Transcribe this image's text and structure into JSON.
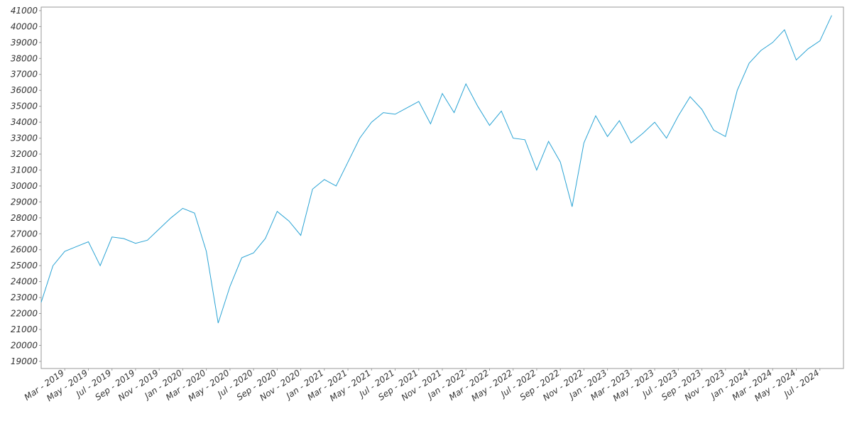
{
  "chart_data": {
    "type": "line",
    "x": [
      "2019-01",
      "2019-02",
      "2019-03",
      "2019-04",
      "2019-05",
      "2019-06",
      "2019-07",
      "2019-08",
      "2019-09",
      "2019-10",
      "2019-11",
      "2019-12",
      "2020-01",
      "2020-02",
      "2020-03",
      "2020-04",
      "2020-05",
      "2020-06",
      "2020-07",
      "2020-08",
      "2020-09",
      "2020-10",
      "2020-11",
      "2020-12",
      "2021-01",
      "2021-02",
      "2021-03",
      "2021-04",
      "2021-05",
      "2021-06",
      "2021-07",
      "2021-08",
      "2021-09",
      "2021-10",
      "2021-11",
      "2021-12",
      "2022-01",
      "2022-02",
      "2022-03",
      "2022-04",
      "2022-05",
      "2022-06",
      "2022-07",
      "2022-08",
      "2022-09",
      "2022-10",
      "2022-11",
      "2022-12",
      "2023-01",
      "2023-02",
      "2023-03",
      "2023-04",
      "2023-05",
      "2023-06",
      "2023-07",
      "2023-08",
      "2023-09",
      "2023-10",
      "2023-11",
      "2023-12",
      "2024-01",
      "2024-02",
      "2024-03",
      "2024-04",
      "2024-05",
      "2024-06",
      "2024-07",
      "2024-08"
    ],
    "series": [
      {
        "color": "#2aa3d4",
        "values": [
          22700,
          25000,
          25900,
          26200,
          26500,
          25000,
          26800,
          26700,
          26400,
          26600,
          27300,
          28000,
          28600,
          28300,
          25900,
          21400,
          23700,
          25500,
          25800,
          26700,
          28400,
          27800,
          26900,
          29800,
          30400,
          30000,
          31500,
          33000,
          34000,
          34600,
          34500,
          34900,
          35300,
          33900,
          35800,
          34600,
          36400,
          35000,
          33800,
          34700,
          33000,
          32900,
          31000,
          32800,
          31500,
          28700,
          32700,
          34400,
          33100,
          34100,
          32700,
          33300,
          34000,
          33000,
          34400,
          35600,
          34800,
          33500,
          33100,
          36000,
          37700,
          38500,
          39000,
          39800,
          37900,
          38600,
          39100,
          40700
        ]
      }
    ],
    "xlim": [
      "2019-01",
      "2024-09"
    ],
    "xticks": [
      {
        "value": "2019-03",
        "label": "Mar - 2019"
      },
      {
        "value": "2019-05",
        "label": "May - 2019"
      },
      {
        "value": "2019-07",
        "label": "Jul - 2019"
      },
      {
        "value": "2019-09",
        "label": "Sep - 2019"
      },
      {
        "value": "2019-11",
        "label": "Nov - 2019"
      },
      {
        "value": "2020-01",
        "label": "Jan - 2020"
      },
      {
        "value": "2020-03",
        "label": "Mar - 2020"
      },
      {
        "value": "2020-05",
        "label": "May - 2020"
      },
      {
        "value": "2020-07",
        "label": "Jul - 2020"
      },
      {
        "value": "2020-09",
        "label": "Sep - 2020"
      },
      {
        "value": "2020-11",
        "label": "Nov - 2020"
      },
      {
        "value": "2021-01",
        "label": "Jan - 2021"
      },
      {
        "value": "2021-03",
        "label": "Mar - 2021"
      },
      {
        "value": "2021-05",
        "label": "May - 2021"
      },
      {
        "value": "2021-07",
        "label": "Jul - 2021"
      },
      {
        "value": "2021-09",
        "label": "Sep - 2021"
      },
      {
        "value": "2021-11",
        "label": "Nov - 2021"
      },
      {
        "value": "2022-01",
        "label": "Jan - 2022"
      },
      {
        "value": "2022-03",
        "label": "Mar - 2022"
      },
      {
        "value": "2022-05",
        "label": "May - 2022"
      },
      {
        "value": "2022-07",
        "label": "Jul - 2022"
      },
      {
        "value": "2022-09",
        "label": "Sep - 2022"
      },
      {
        "value": "2022-11",
        "label": "Nov - 2022"
      },
      {
        "value": "2023-01",
        "label": "Jan - 2023"
      },
      {
        "value": "2023-03",
        "label": "Mar - 2023"
      },
      {
        "value": "2023-05",
        "label": "May - 2023"
      },
      {
        "value": "2023-07",
        "label": "Jul - 2023"
      },
      {
        "value": "2023-09",
        "label": "Sep - 2023"
      },
      {
        "value": "2023-11",
        "label": "Nov - 2023"
      },
      {
        "value": "2024-01",
        "label": "Jan - 2024"
      },
      {
        "value": "2024-03",
        "label": "Mar - 2024"
      },
      {
        "value": "2024-05",
        "label": "May - 2024"
      },
      {
        "value": "2024-07",
        "label": "Jul - 2024"
      }
    ],
    "ylim": [
      18550,
      41220
    ],
    "yticks": [
      19000,
      20000,
      21000,
      22000,
      23000,
      24000,
      25000,
      26000,
      27000,
      28000,
      29000,
      30000,
      31000,
      32000,
      33000,
      34000,
      35000,
      36000,
      37000,
      38000,
      39000,
      40000,
      41000
    ],
    "grid": false
  }
}
